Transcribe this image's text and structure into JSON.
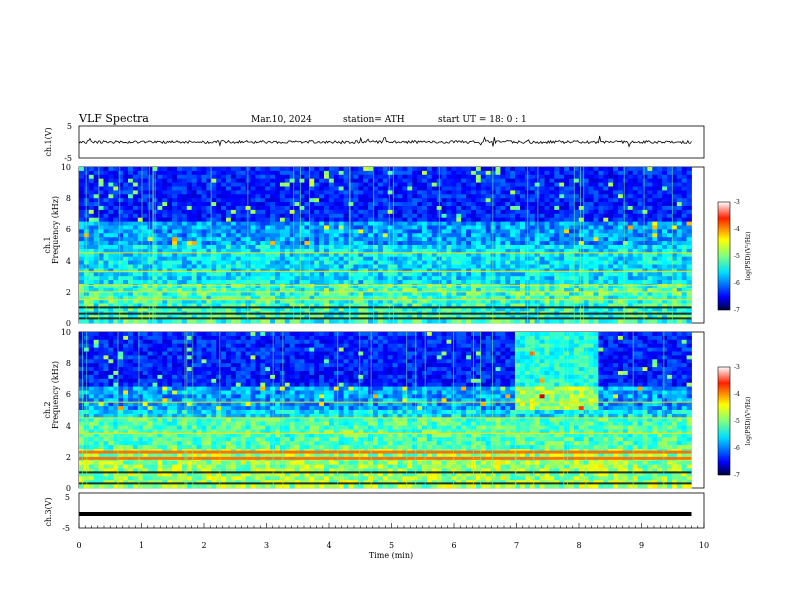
{
  "header": {
    "title": "VLF  Spectra",
    "date": "Mar.10, 2024",
    "station": "station= ATH",
    "start": "start  UT  =    18: 0   : 1"
  },
  "chart_data": [
    {
      "type": "line",
      "panel": "ch1-waveform",
      "ylabel": "ch.1(V)",
      "ytick_labels": [
        "5",
        "-5"
      ],
      "ylim": [
        -5,
        5
      ],
      "x_range_min": [
        0,
        9.8
      ],
      "baseline_value": 0,
      "color": "#000000"
    },
    {
      "type": "heatmap",
      "panel": "ch1-spectrogram",
      "ylabel": [
        "ch.1",
        "Frequency  (kHz)"
      ],
      "ylim_khz": [
        0,
        10
      ],
      "ytick_labels": [
        "0",
        "2",
        "4",
        "6",
        "8",
        "10"
      ],
      "x_range_min": [
        0,
        9.8
      ],
      "colorbar": {
        "label": "log(PSD)(V²/Hz)",
        "range": [
          -7,
          -3
        ],
        "tick_labels": [
          "-3",
          "-4",
          "-5",
          "-6",
          "-7"
        ]
      },
      "prominent_bands_khz": [
        0.3,
        0.6,
        1.0,
        1.5,
        2.0,
        2.4,
        3.3,
        4.5
      ]
    },
    {
      "type": "heatmap",
      "panel": "ch2-spectrogram",
      "ylabel": [
        "ch.2",
        "Frequency  (kHz)"
      ],
      "ylim_khz": [
        0,
        10
      ],
      "ytick_labels": [
        "0",
        "2",
        "4",
        "6",
        "8",
        "10"
      ],
      "x_range_min": [
        0,
        9.8
      ],
      "colorbar": {
        "label": "log(PSD)(V²/Hz)",
        "range": [
          -7,
          -3
        ],
        "tick_labels": [
          "-3",
          "-4",
          "-5",
          "-6",
          "-7"
        ]
      },
      "prominent_bands_khz": [
        0.3,
        1.0,
        1.9,
        2.3,
        3.5,
        4.5,
        5.5
      ]
    },
    {
      "type": "line",
      "panel": "ch3-waveform",
      "ylabel": "ch.3(V)",
      "ytick_labels": [
        "5",
        "-5"
      ],
      "ylim": [
        -5,
        5
      ],
      "x_range_min": [
        0,
        9.8
      ],
      "baseline_value": -1,
      "color": "#000000"
    }
  ],
  "xaxis": {
    "label": "Time  (min)",
    "xlim": [
      0,
      10
    ],
    "tick_labels": [
      "0",
      "1",
      "2",
      "3",
      "4",
      "5",
      "6",
      "7",
      "8",
      "9",
      "10"
    ]
  },
  "colors": {
    "jet_low": "#00007f",
    "jet_high": "#7f0000"
  }
}
